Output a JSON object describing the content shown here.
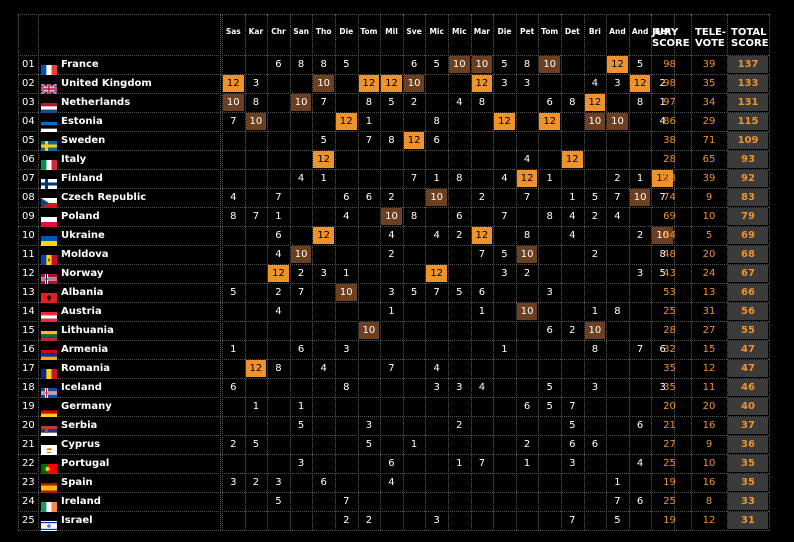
{
  "columns": [
    "Sas",
    "Kar",
    "Chr",
    "San",
    "Tho",
    "Die",
    "Tom",
    "Mil",
    "Sve",
    "Mic",
    "Mic",
    "Mar",
    "Die",
    "Pet",
    "Tom",
    "Det",
    "Bri",
    "And",
    "And",
    "Ben"
  ],
  "summary_headers": [
    {
      "line1": "JURY",
      "line2": "SCORE"
    },
    {
      "line1": "TELE-",
      "line2": "VOTE"
    },
    {
      "line1": "TOTAL",
      "line2": "SCORE"
    }
  ],
  "colors": {
    "bg": "#000000",
    "twelve": "#f0922b",
    "ten": "#6b3f1f",
    "jury_text": "#f0922b",
    "total_bg": "#3b3b3b",
    "total_text": "#f0922b",
    "grid": "#555555"
  },
  "rows": [
    {
      "rank": "01",
      "country": "France",
      "flag": "fr",
      "scores": [
        "",
        "",
        "6",
        "8",
        "8",
        "5",
        "",
        "",
        "6",
        "5",
        "10",
        "10",
        "5",
        "8",
        "10",
        "",
        "",
        "12",
        "5",
        ""
      ],
      "jury": "98",
      "tele": "39",
      "total": "137"
    },
    {
      "rank": "02",
      "country": "United Kingdom",
      "flag": "gb",
      "scores": [
        "12",
        "3",
        "",
        "",
        "10",
        "",
        "12",
        "12",
        "10",
        "",
        "",
        "12",
        "3",
        "3",
        "",
        "",
        "4",
        "3",
        "12",
        "2"
      ],
      "jury": "98",
      "tele": "35",
      "total": "133"
    },
    {
      "rank": "03",
      "country": "Netherlands",
      "flag": "nl",
      "scores": [
        "10",
        "8",
        "",
        "10",
        "7",
        "",
        "8",
        "5",
        "2",
        "",
        "4",
        "8",
        "",
        "",
        "6",
        "8",
        "12",
        "",
        "8",
        "1"
      ],
      "jury": "97",
      "tele": "34",
      "total": "131"
    },
    {
      "rank": "04",
      "country": "Estonia",
      "flag": "ee",
      "scores": [
        "7",
        "10",
        "",
        "",
        "",
        "12",
        "1",
        "",
        "",
        "8",
        "",
        "",
        "12",
        "",
        "12",
        "",
        "10",
        "10",
        "",
        "4"
      ],
      "jury": "86",
      "tele": "29",
      "total": "115"
    },
    {
      "rank": "05",
      "country": "Sweden",
      "flag": "se",
      "scores": [
        "",
        "",
        "",
        "",
        "5",
        "",
        "7",
        "8",
        "12",
        "6",
        "",
        "",
        "",
        "",
        "",
        "",
        "",
        "",
        "",
        ""
      ],
      "jury": "38",
      "tele": "71",
      "total": "109"
    },
    {
      "rank": "06",
      "country": "Italy",
      "flag": "it",
      "scores": [
        "",
        "",
        "",
        "",
        "12",
        "",
        "",
        "",
        "",
        "",
        "",
        "",
        "",
        "4",
        "",
        "12",
        "",
        "",
        "",
        ""
      ],
      "jury": "28",
      "tele": "65",
      "total": "93"
    },
    {
      "rank": "07",
      "country": "Finland",
      "flag": "fi",
      "scores": [
        "",
        "",
        "",
        "4",
        "1",
        "",
        "",
        "",
        "7",
        "1",
        "8",
        "",
        "4",
        "12",
        "1",
        "",
        "",
        "2",
        "1",
        "12"
      ],
      "jury": "53",
      "tele": "39",
      "total": "92"
    },
    {
      "rank": "08",
      "country": "Czech Republic",
      "flag": "cz",
      "scores": [
        "4",
        "",
        "7",
        "",
        "",
        "6",
        "6",
        "2",
        "",
        "10",
        "",
        "2",
        "",
        "7",
        "",
        "1",
        "5",
        "7",
        "10",
        "7"
      ],
      "jury": "74",
      "tele": "9",
      "total": "83"
    },
    {
      "rank": "09",
      "country": "Poland",
      "flag": "pl",
      "scores": [
        "8",
        "7",
        "1",
        "",
        "",
        "4",
        "",
        "10",
        "8",
        "",
        "6",
        "",
        "7",
        "",
        "8",
        "4",
        "2",
        "4",
        "",
        ""
      ],
      "jury": "69",
      "tele": "10",
      "total": "79"
    },
    {
      "rank": "10",
      "country": "Ukraine",
      "flag": "ua",
      "scores": [
        "",
        "",
        "6",
        "",
        "12",
        "",
        "",
        "4",
        "",
        "4",
        "2",
        "12",
        "",
        "8",
        "",
        "4",
        "",
        "",
        "2",
        "10"
      ],
      "jury": "64",
      "tele": "5",
      "total": "69"
    },
    {
      "rank": "11",
      "country": "Moldova",
      "flag": "md",
      "scores": [
        "",
        "",
        "4",
        "10",
        "",
        "",
        "",
        "2",
        "",
        "",
        "",
        "7",
        "5",
        "10",
        "",
        "",
        "2",
        "",
        "",
        "8"
      ],
      "jury": "48",
      "tele": "20",
      "total": "68"
    },
    {
      "rank": "12",
      "country": "Norway",
      "flag": "no",
      "scores": [
        "",
        "",
        "12",
        "2",
        "3",
        "1",
        "",
        "",
        "",
        "12",
        "",
        "",
        "3",
        "2",
        "",
        "",
        "",
        "",
        "3",
        "5"
      ],
      "jury": "43",
      "tele": "24",
      "total": "67"
    },
    {
      "rank": "13",
      "country": "Albania",
      "flag": "al",
      "scores": [
        "5",
        "",
        "2",
        "7",
        "",
        "10",
        "",
        "3",
        "5",
        "7",
        "5",
        "6",
        "",
        "",
        "3",
        "",
        "",
        "",
        "",
        ""
      ],
      "jury": "53",
      "tele": "13",
      "total": "66"
    },
    {
      "rank": "14",
      "country": "Austria",
      "flag": "at",
      "scores": [
        "",
        "",
        "4",
        "",
        "",
        "",
        "",
        "1",
        "",
        "",
        "",
        "1",
        "",
        "10",
        "",
        "",
        "1",
        "8",
        "",
        ""
      ],
      "jury": "25",
      "tele": "31",
      "total": "56"
    },
    {
      "rank": "15",
      "country": "Lithuania",
      "flag": "lt",
      "scores": [
        "",
        "",
        "",
        "",
        "",
        "",
        "10",
        "",
        "",
        "",
        "",
        "",
        "",
        "",
        "6",
        "2",
        "10",
        "",
        "",
        ""
      ],
      "jury": "28",
      "tele": "27",
      "total": "55"
    },
    {
      "rank": "16",
      "country": "Armenia",
      "flag": "am",
      "scores": [
        "1",
        "",
        "",
        "6",
        "",
        "3",
        "",
        "",
        "",
        "",
        "",
        "",
        "1",
        "",
        "",
        "",
        "8",
        "",
        "7",
        "6"
      ],
      "jury": "32",
      "tele": "15",
      "total": "47"
    },
    {
      "rank": "17",
      "country": "Romania",
      "flag": "ro",
      "scores": [
        "",
        "12",
        "8",
        "",
        "4",
        "",
        "",
        "7",
        "",
        "4",
        "",
        "",
        "",
        "",
        "",
        "",
        "",
        "",
        "",
        ""
      ],
      "jury": "35",
      "tele": "12",
      "total": "47"
    },
    {
      "rank": "18",
      "country": "Iceland",
      "flag": "is",
      "scores": [
        "6",
        "",
        "",
        "",
        "",
        "8",
        "",
        "",
        "",
        "3",
        "3",
        "4",
        "",
        "",
        "5",
        "",
        "3",
        "",
        "",
        "3"
      ],
      "jury": "35",
      "tele": "11",
      "total": "46"
    },
    {
      "rank": "19",
      "country": "Germany",
      "flag": "de",
      "scores": [
        "",
        "1",
        "",
        "1",
        "",
        "",
        "",
        "",
        "",
        "",
        "",
        "",
        "",
        "6",
        "5",
        "7",
        "",
        "",
        "",
        ""
      ],
      "jury": "20",
      "tele": "20",
      "total": "40"
    },
    {
      "rank": "20",
      "country": "Serbia",
      "flag": "rs",
      "scores": [
        "",
        "",
        "",
        "5",
        "",
        "",
        "3",
        "",
        "",
        "",
        "2",
        "",
        "",
        "",
        "",
        "5",
        "",
        "",
        "6",
        ""
      ],
      "jury": "21",
      "tele": "16",
      "total": "37"
    },
    {
      "rank": "21",
      "country": "Cyprus",
      "flag": "cy",
      "scores": [
        "2",
        "5",
        "",
        "",
        "",
        "",
        "5",
        "",
        "1",
        "",
        "",
        "",
        "",
        "2",
        "",
        "6",
        "6",
        "",
        "",
        ""
      ],
      "jury": "27",
      "tele": "9",
      "total": "36"
    },
    {
      "rank": "22",
      "country": "Portugal",
      "flag": "pt",
      "scores": [
        "",
        "",
        "",
        "3",
        "",
        "",
        "",
        "6",
        "",
        "",
        "1",
        "7",
        "",
        "1",
        "",
        "3",
        "",
        "",
        "4",
        ""
      ],
      "jury": "25",
      "tele": "10",
      "total": "35"
    },
    {
      "rank": "23",
      "country": "Spain",
      "flag": "es",
      "scores": [
        "3",
        "2",
        "3",
        "",
        "6",
        "",
        "",
        "4",
        "",
        "",
        "",
        "",
        "",
        "",
        "",
        "",
        "",
        "1",
        "",
        ""
      ],
      "jury": "19",
      "tele": "16",
      "total": "35"
    },
    {
      "rank": "24",
      "country": "Ireland",
      "flag": "ie",
      "scores": [
        "",
        "",
        "5",
        "",
        "",
        "7",
        "",
        "",
        "",
        "",
        "",
        "",
        "",
        "",
        "",
        "",
        "",
        "7",
        "6",
        ""
      ],
      "jury": "25",
      "tele": "8",
      "total": "33"
    },
    {
      "rank": "25",
      "country": "Israel",
      "flag": "il",
      "scores": [
        "",
        "",
        "",
        "",
        "",
        "2",
        "2",
        "",
        "",
        "3",
        "",
        "",
        "",
        "",
        "",
        "7",
        "",
        "5",
        "",
        ""
      ],
      "jury": "19",
      "tele": "12",
      "total": "31"
    }
  ]
}
